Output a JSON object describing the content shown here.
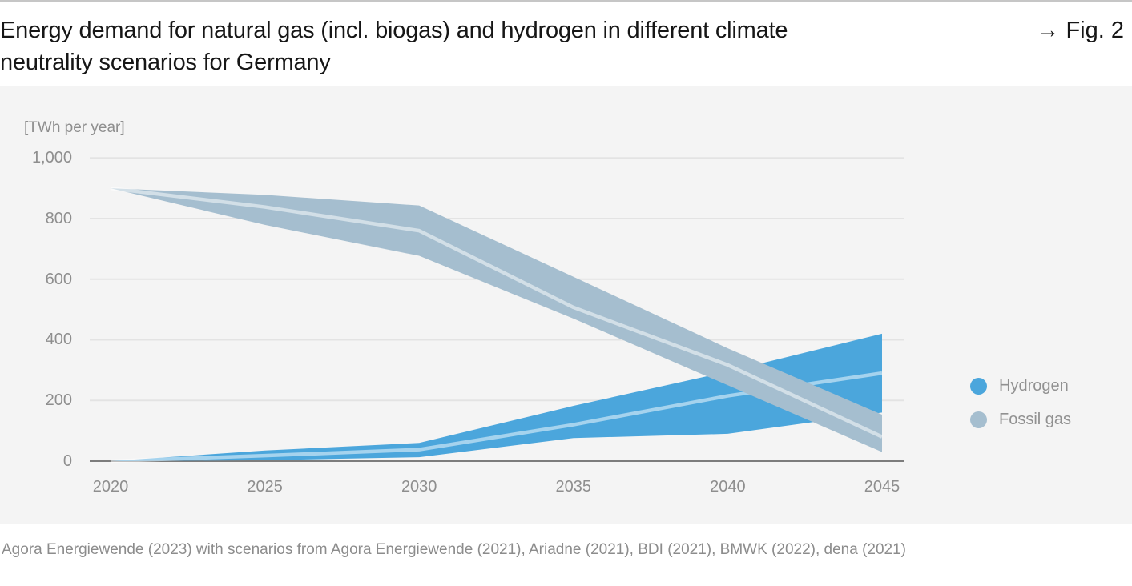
{
  "header": {
    "title_lines": [
      "Energy demand for natural gas (incl. biogas) and hydrogen in different climate",
      "neutrality scenarios for Germany"
    ],
    "figure_label": "→ Fig. 2"
  },
  "chart_data": {
    "type": "area",
    "title": "Energy demand for natural gas (incl. biogas) and hydrogen in different climate neutrality scenarios for Germany",
    "unit_label": "[TWh per year]",
    "xlabel": "",
    "ylabel": "TWh per year",
    "x": [
      2020,
      2025,
      2030,
      2035,
      2040,
      2045
    ],
    "ylim": [
      0,
      1000
    ],
    "grid": true,
    "legend_position": "right",
    "yticks": [
      {
        "value": 0,
        "label": "0"
      },
      {
        "value": 200,
        "label": "200"
      },
      {
        "value": 400,
        "label": "400"
      },
      {
        "value": 600,
        "label": "600"
      },
      {
        "value": 800,
        "label": "800"
      },
      {
        "value": 1000,
        "label": "1,000"
      }
    ],
    "series": [
      {
        "name": "Hydrogen",
        "color": "#4ba6dc",
        "center_line_color": "rgba(255,255,255,0.5)",
        "band_upper": [
          0,
          35,
          60,
          182,
          295,
          420
        ],
        "center": [
          0,
          18,
          38,
          120,
          215,
          290
        ],
        "band_lower": [
          0,
          3,
          13,
          76,
          90,
          160
        ]
      },
      {
        "name": "Fossil gas",
        "color": "#a5becf",
        "center_line_color": "rgba(255,255,255,0.5)",
        "band_upper": [
          900,
          878,
          843,
          608,
          372,
          153
        ],
        "center": [
          900,
          838,
          760,
          507,
          317,
          80
        ],
        "band_lower": [
          900,
          779,
          677,
          470,
          250,
          30
        ]
      }
    ]
  },
  "footer": {
    "source": "Agora Energiewende (2023) with scenarios from Agora Energiewende (2021), Ariadne (2021), BDI (2021), BMWK (2022), dena (2021)"
  }
}
